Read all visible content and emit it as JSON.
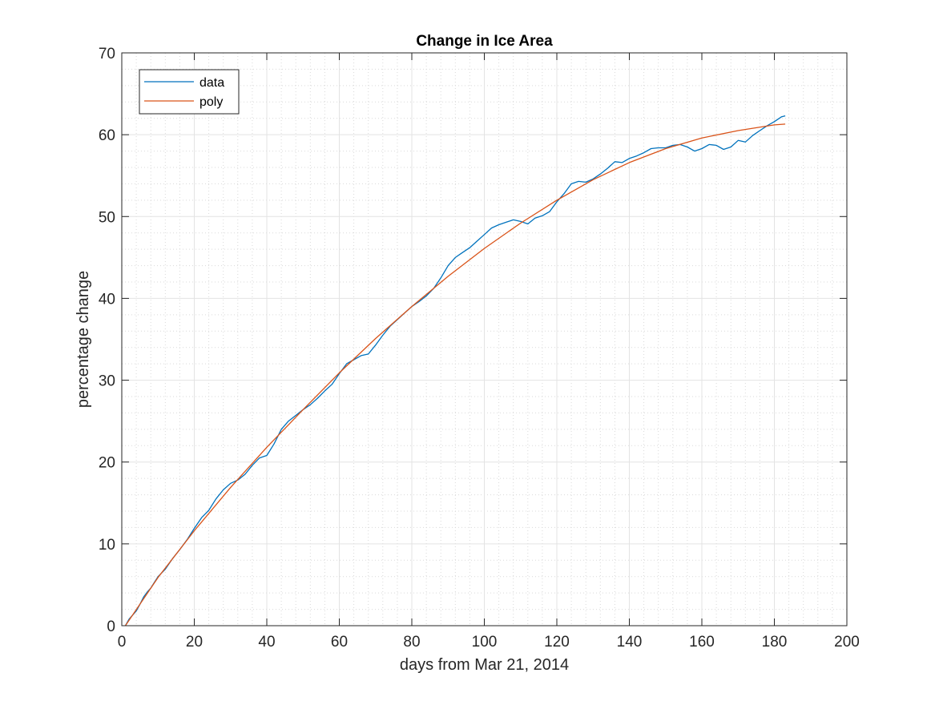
{
  "chart_data": {
    "type": "line",
    "title": "Change in Ice Area",
    "xlabel": "days from Mar 21, 2014",
    "ylabel": "percentage change",
    "xlim": [
      0,
      200
    ],
    "ylim": [
      0,
      70
    ],
    "xticks": [
      0,
      20,
      40,
      60,
      80,
      100,
      120,
      140,
      160,
      180,
      200
    ],
    "yticks": [
      0,
      10,
      20,
      30,
      40,
      50,
      60,
      70
    ],
    "xtick_labels": [
      "0",
      "20",
      "40",
      "60",
      "80",
      "100",
      "120",
      "140",
      "160",
      "180",
      "200"
    ],
    "ytick_labels": [
      "0",
      "10",
      "20",
      "30",
      "40",
      "50",
      "60",
      "70"
    ],
    "grid": true,
    "minor_grid": true,
    "legend_position": "top-left",
    "series": [
      {
        "name": "data",
        "color": "#0072BD",
        "x": [
          1,
          2,
          3,
          4,
          5,
          6,
          7,
          8,
          9,
          10,
          12,
          14,
          16,
          18,
          20,
          22,
          24,
          26,
          28,
          30,
          32,
          34,
          36,
          38,
          40,
          42,
          44,
          46,
          48,
          50,
          52,
          54,
          56,
          58,
          60,
          62,
          64,
          66,
          68,
          70,
          72,
          74,
          76,
          78,
          80,
          82,
          84,
          86,
          88,
          90,
          92,
          94,
          96,
          98,
          100,
          102,
          104,
          106,
          108,
          110,
          112,
          114,
          116,
          118,
          120,
          122,
          124,
          126,
          128,
          130,
          132,
          134,
          136,
          138,
          140,
          142,
          144,
          146,
          148,
          150,
          152,
          154,
          156,
          158,
          160,
          162,
          164,
          166,
          168,
          170,
          172,
          174,
          176,
          178,
          180,
          182,
          183
        ],
        "y": [
          0,
          0.8,
          1.3,
          1.8,
          2.6,
          3.5,
          4.1,
          4.6,
          5.3,
          6.0,
          6.9,
          8.2,
          9.3,
          10.5,
          11.9,
          13.2,
          14.1,
          15.5,
          16.6,
          17.4,
          17.8,
          18.5,
          19.6,
          20.5,
          20.8,
          22.2,
          24.0,
          25.0,
          25.7,
          26.4,
          27.0,
          27.8,
          28.7,
          29.5,
          30.8,
          32.0,
          32.5,
          33.0,
          33.2,
          34.3,
          35.5,
          36.6,
          37.4,
          38.2,
          39.0,
          39.6,
          40.3,
          41.2,
          42.5,
          44.0,
          45.0,
          45.6,
          46.2,
          47.0,
          47.8,
          48.6,
          49.0,
          49.3,
          49.6,
          49.4,
          49.1,
          49.8,
          50.1,
          50.6,
          51.8,
          52.8,
          54.0,
          54.3,
          54.2,
          54.6,
          55.2,
          55.9,
          56.7,
          56.6,
          57.1,
          57.4,
          57.8,
          58.3,
          58.4,
          58.4,
          58.7,
          58.8,
          58.5,
          58.0,
          58.3,
          58.8,
          58.7,
          58.2,
          58.5,
          59.3,
          59.1,
          59.9,
          60.5,
          61.1,
          61.6,
          62.2,
          62.3
        ]
      },
      {
        "name": "poly",
        "color": "#D95319",
        "x": [
          1,
          10,
          20,
          30,
          40,
          50,
          60,
          70,
          80,
          90,
          100,
          110,
          120,
          130,
          140,
          150,
          160,
          170,
          180,
          183
        ],
        "y": [
          0,
          5.9,
          11.6,
          16.9,
          21.8,
          26.4,
          30.9,
          35.1,
          39.0,
          42.7,
          46.1,
          49.2,
          52.0,
          54.5,
          56.6,
          58.3,
          59.6,
          60.5,
          61.2,
          61.3
        ]
      }
    ]
  }
}
